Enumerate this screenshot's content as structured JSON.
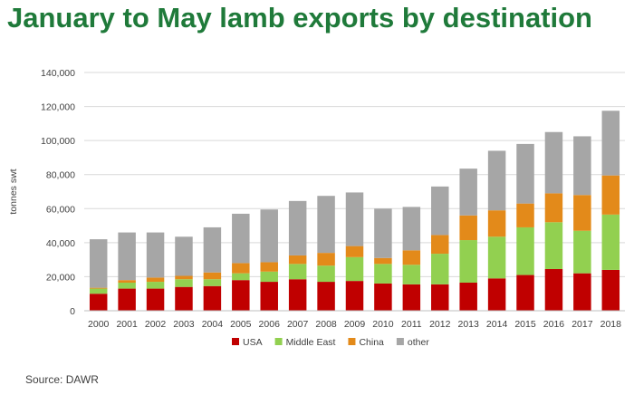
{
  "title": "January to May lamb exports by destination",
  "source": "Source: DAWR",
  "chart_data": {
    "type": "bar",
    "stacked": true,
    "title": "January to May lamb exports by destination",
    "xlabel": "",
    "ylabel": "tonnes swt",
    "ylim": [
      0,
      140000
    ],
    "yticks": [
      0,
      20000,
      40000,
      60000,
      80000,
      100000,
      120000,
      140000
    ],
    "ytick_labels": [
      "0",
      "20,000",
      "40,000",
      "60,000",
      "80,000",
      "100,000",
      "120,000",
      "140,000"
    ],
    "grid": true,
    "legend_position": "bottom",
    "categories": [
      "2000",
      "2001",
      "2002",
      "2003",
      "2004",
      "2005",
      "2006",
      "2007",
      "2008",
      "2009",
      "2010",
      "2011",
      "2012",
      "2013",
      "2014",
      "2015",
      "2016",
      "2017",
      "2018"
    ],
    "series": [
      {
        "name": "USA",
        "color": "#c00000",
        "values": [
          10000,
          13000,
          13000,
          14000,
          14500,
          18000,
          17000,
          18500,
          17000,
          17500,
          16000,
          15500,
          15500,
          16500,
          19000,
          21000,
          24500,
          22000,
          24000
        ]
      },
      {
        "name": "Middle East",
        "color": "#92d050",
        "values": [
          3000,
          3500,
          4000,
          4500,
          4000,
          4000,
          6000,
          9000,
          9500,
          14000,
          11500,
          11500,
          18000,
          25000,
          24500,
          28000,
          27500,
          25000,
          32500
        ]
      },
      {
        "name": "China",
        "color": "#e38a1a",
        "values": [
          500,
          1500,
          2500,
          2000,
          4000,
          6000,
          5500,
          5000,
          7500,
          6500,
          3500,
          8500,
          11000,
          14500,
          15500,
          14000,
          17000,
          21000,
          23000
        ]
      },
      {
        "name": "other",
        "color": "#a6a6a6",
        "values": [
          28500,
          28000,
          26500,
          23000,
          26500,
          29000,
          31000,
          32000,
          33500,
          31500,
          29000,
          25500,
          28500,
          27500,
          35000,
          35000,
          36000,
          34500,
          38000
        ]
      }
    ]
  }
}
